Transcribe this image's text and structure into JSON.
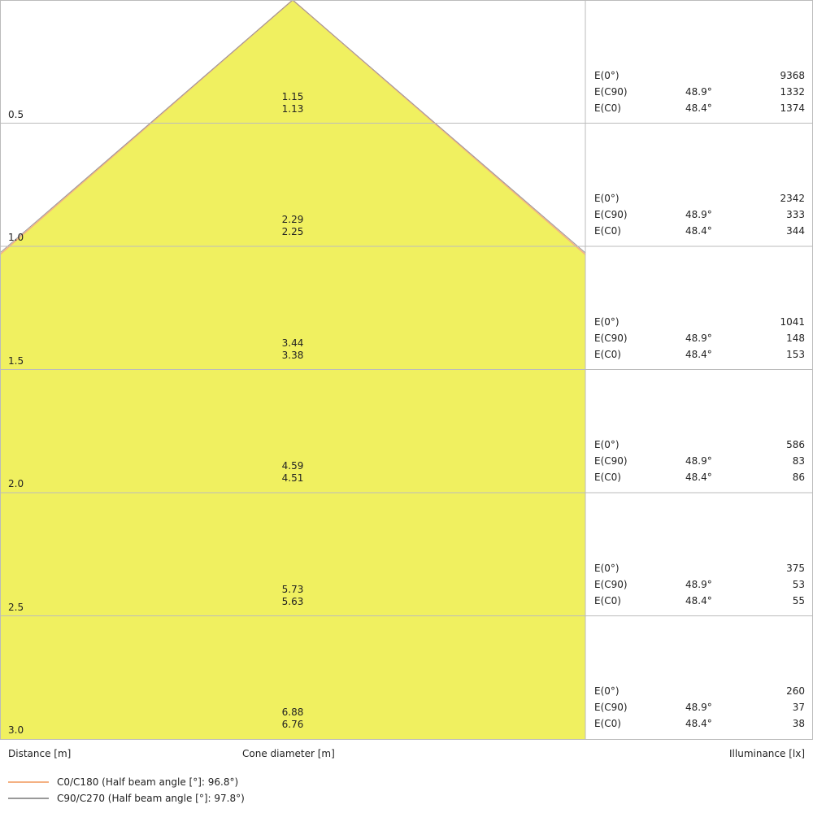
{
  "chart_data": {
    "type": "cone-diagram",
    "xlabel_left": "Distance [m]",
    "xlabel_center": "Cone diameter [m]",
    "xlabel_right": "Illuminance [lx]",
    "fill_color": "#f0f060",
    "rows": [
      {
        "distance": "0.5",
        "d_c90": "1.15",
        "d_c0": "1.13",
        "e0": "9368",
        "ec90_angle": "48.9°",
        "ec90": "1332",
        "ec0_angle": "48.4°",
        "ec0": "1374"
      },
      {
        "distance": "1.0",
        "d_c90": "2.29",
        "d_c0": "2.25",
        "e0": "2342",
        "ec90_angle": "48.9°",
        "ec90": "333",
        "ec0_angle": "48.4°",
        "ec0": "344"
      },
      {
        "distance": "1.5",
        "d_c90": "3.44",
        "d_c0": "3.38",
        "e0": "1041",
        "ec90_angle": "48.9°",
        "ec90": "148",
        "ec0_angle": "48.4°",
        "ec0": "153"
      },
      {
        "distance": "2.0",
        "d_c90": "4.59",
        "d_c0": "4.51",
        "e0": "586",
        "ec90_angle": "48.9°",
        "ec90": "83",
        "ec0_angle": "48.4°",
        "ec0": "86"
      },
      {
        "distance": "2.5",
        "d_c90": "5.73",
        "d_c0": "5.63",
        "e0": "375",
        "ec90_angle": "48.9°",
        "ec90": "53",
        "ec0_angle": "48.4°",
        "ec0": "55"
      },
      {
        "distance": "3.0",
        "d_c90": "6.88",
        "d_c0": "6.76",
        "e0": "260",
        "ec90_angle": "48.9°",
        "ec90": "37",
        "ec0_angle": "48.4°",
        "ec0": "38"
      }
    ],
    "row_labels": {
      "e0": "E(0°)",
      "ec90": "E(C90)",
      "ec0": "E(C0)"
    },
    "legend": [
      {
        "name": "C0/C180 (Half beam angle [°]: 96.8°)",
        "color": "#f4b183"
      },
      {
        "name": "C90/C270 (Half beam angle [°]: 97.8°)",
        "color": "#999999"
      }
    ]
  }
}
